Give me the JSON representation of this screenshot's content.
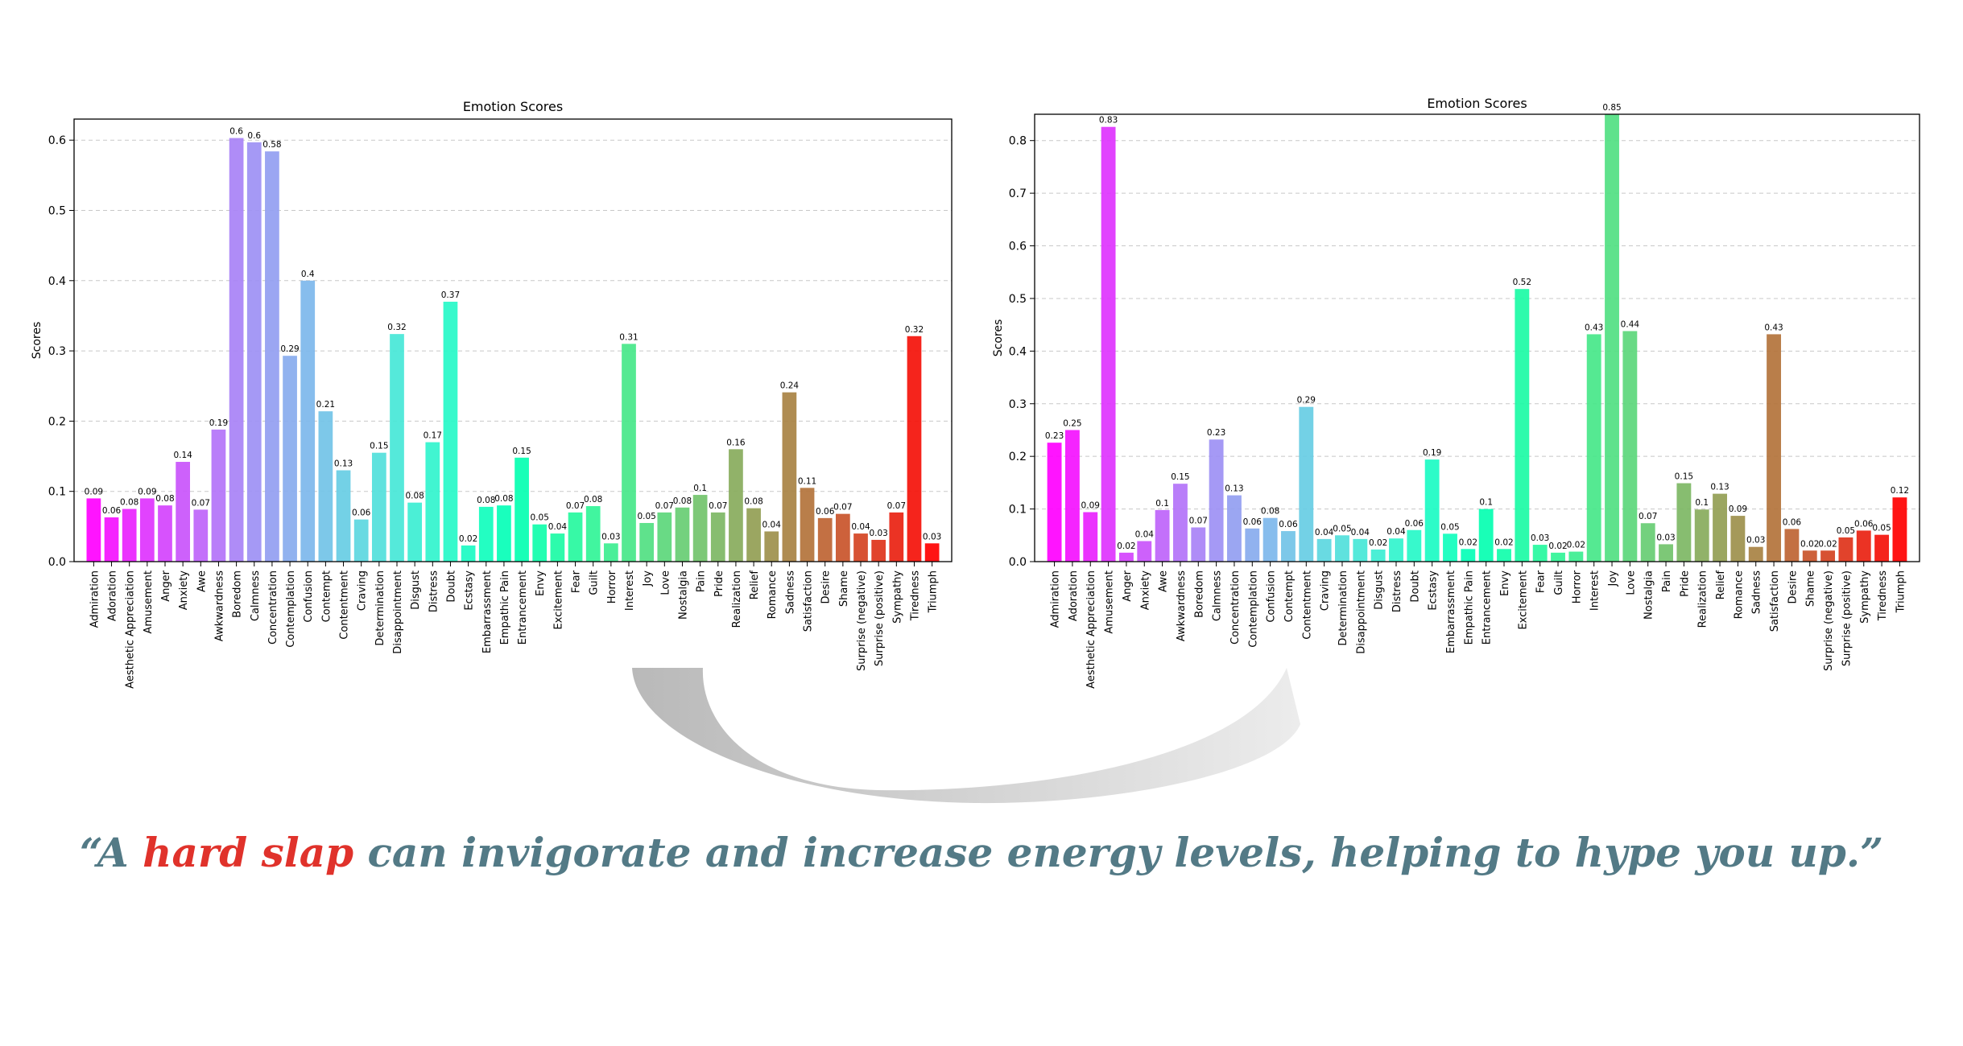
{
  "quote": {
    "prefix": "“A ",
    "highlight": "hard slap",
    "suffix": " can invigorate and increase energy levels, helping to hype you up.”",
    "highlight_color": "#e0322b",
    "text_color": "#537a86"
  },
  "arrow_color": "#bdbdbd",
  "chart_data": [
    {
      "type": "bar",
      "title": "Emotion Scores",
      "xlabel": "",
      "ylabel": "Scores",
      "ylim": [
        0,
        0.63
      ],
      "yticks": [
        "0.0",
        "0.1",
        "0.2",
        "0.3",
        "0.4",
        "0.5",
        "0.6"
      ],
      "grid": "horizontal dashed",
      "colormap": "rainbow",
      "categories": [
        "Admiration",
        "Adoration",
        "Aesthetic Appreciation",
        "Amusement",
        "Anger",
        "Anxiety",
        "Awe",
        "Awkwardness",
        "Boredom",
        "Calmness",
        "Concentration",
        "Contemplation",
        "Confusion",
        "Contempt",
        "Contentment",
        "Craving",
        "Determination",
        "Disappointment",
        "Disgust",
        "Distress",
        "Doubt",
        "Ecstasy",
        "Embarrassment",
        "Empathic Pain",
        "Entrancement",
        "Envy",
        "Excitement",
        "Fear",
        "Guilt",
        "Horror",
        "Interest",
        "Joy",
        "Love",
        "Nostalgia",
        "Pain",
        "Pride",
        "Realization",
        "Relief",
        "Romance",
        "Sadness",
        "Satisfaction",
        "Desire",
        "Shame",
        "Surprise (negative)",
        "Surprise (positive)",
        "Sympathy",
        "Tiredness",
        "Triumph"
      ],
      "values": [
        0.09,
        0.063,
        0.075,
        0.09,
        0.08,
        0.142,
        0.074,
        0.188,
        0.603,
        0.597,
        0.584,
        0.293,
        0.4,
        0.214,
        0.13,
        0.06,
        0.155,
        0.324,
        0.084,
        0.17,
        0.37,
        0.023,
        0.078,
        0.08,
        0.148,
        0.053,
        0.04,
        0.07,
        0.079,
        0.026,
        0.31,
        0.055,
        0.07,
        0.077,
        0.095,
        0.07,
        0.16,
        0.076,
        0.043,
        0.241,
        0.105,
        0.062,
        0.068,
        0.04,
        0.031,
        0.07,
        0.321,
        0.026
      ],
      "labels": [
        "0.09",
        "0.06",
        "0.08",
        "0.09",
        "0.08",
        "0.14",
        "0.07",
        "0.19",
        "0.6",
        "0.6",
        "0.58",
        "0.29",
        "0.4",
        "0.21",
        "0.13",
        "0.06",
        "0.15",
        "0.32",
        "0.08",
        "0.17",
        "0.37",
        "0.02",
        "0.08",
        "0.08",
        "0.15",
        "0.05",
        "0.04",
        "0.07",
        "0.08",
        "0.03",
        "0.31",
        "0.05",
        "0.07",
        "0.08",
        "0.1",
        "0.07",
        "0.16",
        "0.08",
        "0.04",
        "0.24",
        "0.11",
        "0.06",
        "0.07",
        "0.04",
        "0.03",
        "0.07",
        "0.32",
        "0.03"
      ]
    },
    {
      "type": "bar",
      "title": "Emotion Scores",
      "xlabel": "",
      "ylabel": "Scores",
      "ylim": [
        0,
        0.85
      ],
      "yticks": [
        "0.0",
        "0.1",
        "0.2",
        "0.3",
        "0.4",
        "0.5",
        "0.6",
        "0.7",
        "0.8"
      ],
      "grid": "horizontal dashed",
      "colormap": "rainbow",
      "categories": [
        "Admiration",
        "Adoration",
        "Aesthetic Appreciation",
        "Amusement",
        "Anger",
        "Anxiety",
        "Awe",
        "Awkwardness",
        "Boredom",
        "Calmness",
        "Concentration",
        "Contemplation",
        "Confusion",
        "Contempt",
        "Contentment",
        "Craving",
        "Determination",
        "Disappointment",
        "Disgust",
        "Distress",
        "Doubt",
        "Ecstasy",
        "Embarrassment",
        "Empathic Pain",
        "Entrancement",
        "Envy",
        "Excitement",
        "Fear",
        "Guilt",
        "Horror",
        "Interest",
        "Joy",
        "Love",
        "Nostalgia",
        "Pain",
        "Pride",
        "Realization",
        "Relief",
        "Romance",
        "Sadness",
        "Satisfaction",
        "Desire",
        "Shame",
        "Surprise (negative)",
        "Surprise (positive)",
        "Sympathy",
        "Tiredness",
        "Triumph"
      ],
      "values": [
        0.226,
        0.25,
        0.094,
        0.826,
        0.017,
        0.039,
        0.098,
        0.148,
        0.065,
        0.232,
        0.126,
        0.063,
        0.083,
        0.058,
        0.294,
        0.043,
        0.05,
        0.043,
        0.023,
        0.044,
        0.06,
        0.194,
        0.053,
        0.024,
        0.1,
        0.024,
        0.518,
        0.032,
        0.017,
        0.019,
        0.432,
        0.85,
        0.438,
        0.073,
        0.033,
        0.149,
        0.099,
        0.129,
        0.087,
        0.028,
        0.432,
        0.062,
        0.021,
        0.021,
        0.046,
        0.059,
        0.051,
        0.122
      ],
      "labels": [
        "0.23",
        "0.25",
        "0.09",
        "0.83",
        "0.02",
        "0.04",
        "0.1",
        "0.15",
        "0.07",
        "0.23",
        "0.13",
        "0.06",
        "0.08",
        "0.06",
        "0.29",
        "0.04",
        "0.05",
        "0.04",
        "0.02",
        "0.04",
        "0.06",
        "0.19",
        "0.05",
        "0.02",
        "0.1",
        "0.02",
        "0.52",
        "0.03",
        "0.02",
        "0.02",
        "0.43",
        "0.85",
        "0.44",
        "0.07",
        "0.03",
        "0.15",
        "0.1",
        "0.13",
        "0.09",
        "0.03",
        "0.43",
        "0.06",
        "0.02",
        "0.02",
        "0.05",
        "0.06",
        "0.05",
        "0.12"
      ]
    }
  ]
}
